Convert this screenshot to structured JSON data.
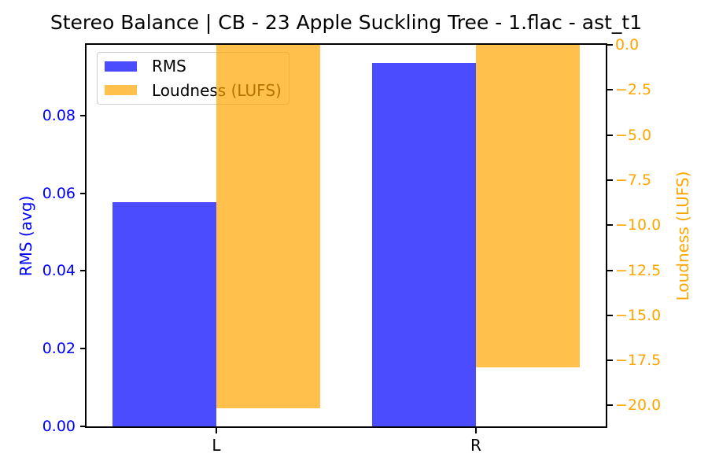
{
  "title": "Stereo Balance | CB - 23 Apple Suckling Tree - 1.flac - ast_t1",
  "chart_data": {
    "type": "bar",
    "title": "Stereo Balance | CB - 23 Apple Suckling Tree - 1.flac - ast_t1",
    "categories": [
      "L",
      "R"
    ],
    "series": [
      {
        "name": "RMS",
        "axis": "left",
        "color": "rgba(0,0,255,0.7)",
        "solid_color": "#4d4dff",
        "values": [
          0.0577,
          0.0935
        ]
      },
      {
        "name": "Loudness (LUFS)",
        "axis": "right",
        "color": "rgba(255,165,0,0.7)",
        "solid_color": "#ffc04d",
        "values": [
          -20.15,
          -17.9
        ]
      }
    ],
    "left_axis": {
      "label": "RMS (avg)",
      "color": "#0000ff",
      "range": [
        0,
        0.0982
      ],
      "tick_values": [
        0,
        0.02,
        0.04,
        0.06,
        0.08
      ],
      "tick_labels": [
        "0.00",
        "0.02",
        "0.04",
        "0.06",
        "0.08"
      ]
    },
    "right_axis": {
      "label": "Loudness (LUFS)",
      "color": "#ffa500",
      "range": [
        -21.16,
        0
      ],
      "tick_values": [
        0,
        -2.5,
        -5,
        -7.5,
        -10,
        -12.5,
        -15,
        -17.5,
        -20
      ],
      "tick_labels": [
        "0.0",
        "−2.5",
        "−5.0",
        "−7.5",
        "−10.0",
        "−12.5",
        "−15.0",
        "−17.5",
        "−20.0"
      ]
    },
    "x_axis": {
      "tick_labels": [
        "L",
        "R"
      ]
    },
    "legend": {
      "position": "upper left",
      "entries": [
        "RMS",
        "Loudness (LUFS)"
      ]
    },
    "layout": {
      "grid": false,
      "bar_width_units": 0.4,
      "group_offset_units": 0.2,
      "background": "#ffffff",
      "spine_color": "#000000"
    }
  }
}
